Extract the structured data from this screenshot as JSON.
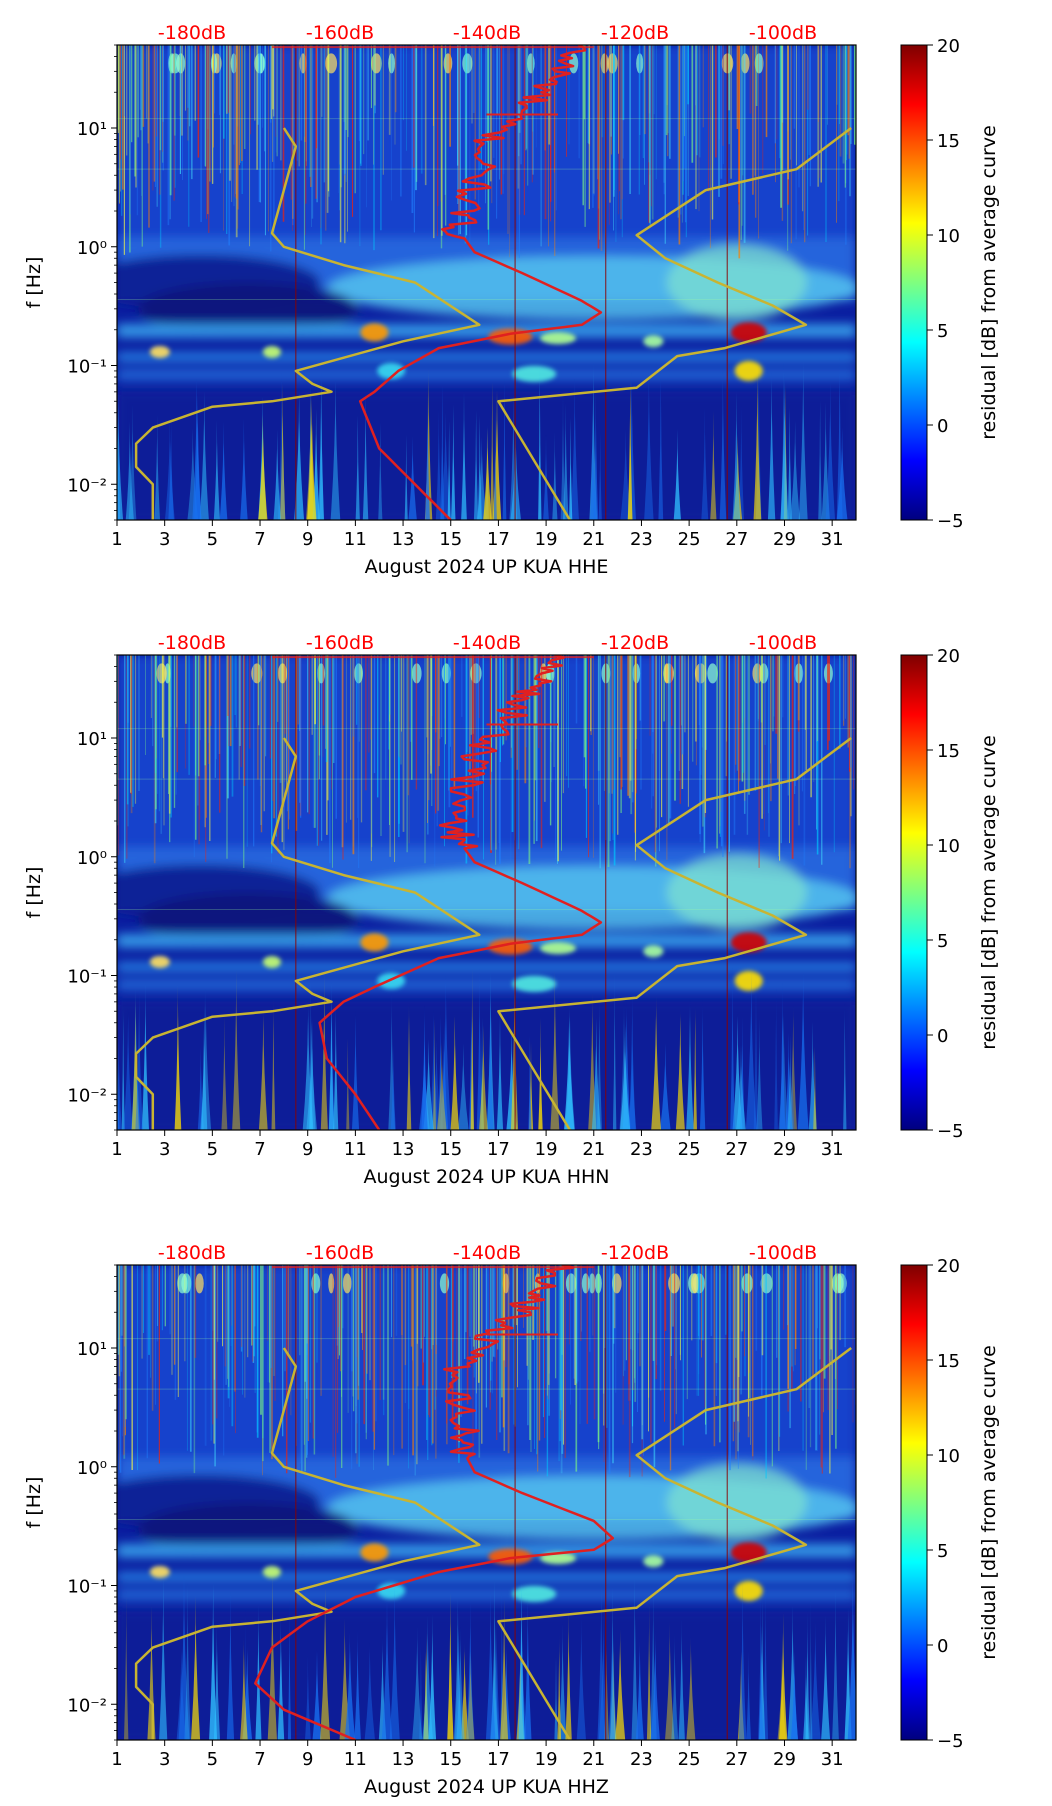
{
  "figure": {
    "title": ""
  },
  "colorbar": {
    "label": "residual [dB] from average curve",
    "ticks": [
      "20",
      "15",
      "10",
      "5",
      "0",
      "−5"
    ],
    "range": [
      -5,
      20
    ],
    "colormap": "jet",
    "stops": [
      "#00007f",
      "#0000ff",
      "#007fff",
      "#00ffff",
      "#7fff7f",
      "#ffff00",
      "#ff7f00",
      "#ff0000",
      "#7f0000"
    ]
  },
  "colors": {
    "psd_curve": "#e02020",
    "noise_model": "#c8b432",
    "db_labels": "#ff0000",
    "axis": "#000000"
  },
  "chart_data": [
    {
      "type": "heatmap",
      "station": "UP KUA",
      "channel": "HHE",
      "xlabel": "August 2024 UP KUA  HHE",
      "ylabel": "f [Hz]",
      "xlim": [
        1,
        32
      ],
      "ylim": [
        0.005,
        50
      ],
      "y_scale": "log",
      "x_ticks": [
        "1",
        "3",
        "5",
        "7",
        "9",
        "11",
        "13",
        "15",
        "17",
        "19",
        "21",
        "23",
        "25",
        "27",
        "29",
        "31"
      ],
      "y_ticks": [
        "10⁻²",
        "10⁻¹",
        "10⁰",
        "10¹"
      ],
      "top_labels": [
        "-180dB",
        "-160dB",
        "-140dB",
        "-120dB",
        "-100dB"
      ],
      "psd_curve_days": {
        "points": [
          [
            20.3,
            50
          ],
          [
            19.6,
            30
          ],
          [
            18.8,
            20
          ],
          [
            17.4,
            12
          ],
          [
            16.4,
            7
          ],
          [
            16.2,
            4
          ],
          [
            15.6,
            2.2
          ],
          [
            15.3,
            1.4
          ],
          [
            16,
            0.9
          ],
          [
            18,
            0.6
          ],
          [
            20.5,
            0.35
          ],
          [
            21.3,
            0.28
          ],
          [
            20.5,
            0.22
          ],
          [
            17.5,
            0.185
          ],
          [
            14.5,
            0.14
          ],
          [
            12.8,
            0.09
          ],
          [
            11.8,
            0.06
          ],
          [
            11.2,
            0.05
          ],
          [
            12,
            0.02
          ],
          [
            13.5,
            0.01
          ],
          [
            15,
            0.005
          ]
        ]
      },
      "noise_model_days": {
        "low": [
          [
            8,
            10
          ],
          [
            8.5,
            7
          ],
          [
            8,
            3
          ],
          [
            7.5,
            1.3
          ],
          [
            8,
            1
          ],
          [
            10.5,
            0.7
          ],
          [
            13.5,
            0.5
          ],
          [
            16.2,
            0.22
          ],
          [
            13,
            0.16
          ],
          [
            8.5,
            0.09
          ],
          [
            9.2,
            0.07
          ],
          [
            10,
            0.06
          ],
          [
            7.5,
            0.05
          ],
          [
            5,
            0.045
          ],
          [
            2.5,
            0.03
          ],
          [
            1.8,
            0.022
          ],
          [
            1.8,
            0.014
          ],
          [
            2.5,
            0.01
          ],
          [
            2.5,
            0.005
          ]
        ],
        "high": [
          [
            31.8,
            10
          ],
          [
            29.5,
            4.5
          ],
          [
            25.7,
            3.0
          ],
          [
            22.8,
            1.25
          ],
          [
            24,
            0.8
          ],
          [
            26.2,
            0.5
          ],
          [
            28.5,
            0.32
          ],
          [
            29.9,
            0.22
          ],
          [
            26.5,
            0.14
          ],
          [
            24.5,
            0.12
          ],
          [
            22.8,
            0.065
          ],
          [
            17,
            0.05
          ],
          [
            20,
            0.005
          ]
        ]
      }
    },
    {
      "type": "heatmap",
      "station": "UP KUA",
      "channel": "HHN",
      "xlabel": "August 2024 UP KUA  HHN",
      "ylabel": "f [Hz]",
      "xlim": [
        1,
        32
      ],
      "ylim": [
        0.005,
        50
      ],
      "y_scale": "log",
      "x_ticks": [
        "1",
        "3",
        "5",
        "7",
        "9",
        "11",
        "13",
        "15",
        "17",
        "19",
        "21",
        "23",
        "25",
        "27",
        "29",
        "31"
      ],
      "y_ticks": [
        "10⁻²",
        "10⁻¹",
        "10⁰",
        "10¹"
      ],
      "top_labels": [
        "-180dB",
        "-160dB",
        "-140dB",
        "-120dB",
        "-100dB"
      ],
      "psd_curve_days": {
        "points": [
          [
            19.3,
            50
          ],
          [
            18.8,
            30
          ],
          [
            17.8,
            20
          ],
          [
            17.2,
            12
          ],
          [
            16,
            7
          ],
          [
            15.6,
            4
          ],
          [
            15.2,
            2.2
          ],
          [
            15.3,
            1.4
          ],
          [
            16,
            0.9
          ],
          [
            18,
            0.6
          ],
          [
            20.5,
            0.35
          ],
          [
            21.3,
            0.28
          ],
          [
            20.5,
            0.22
          ],
          [
            17.5,
            0.185
          ],
          [
            14.5,
            0.14
          ],
          [
            11.8,
            0.08
          ],
          [
            10.5,
            0.06
          ],
          [
            9.5,
            0.04
          ],
          [
            9.8,
            0.02
          ],
          [
            11,
            0.01
          ],
          [
            12,
            0.005
          ]
        ]
      },
      "noise_model_days": {
        "low": [
          [
            8,
            10
          ],
          [
            8.5,
            7
          ],
          [
            8,
            3
          ],
          [
            7.5,
            1.3
          ],
          [
            8,
            1
          ],
          [
            10.5,
            0.7
          ],
          [
            13.5,
            0.5
          ],
          [
            16.2,
            0.22
          ],
          [
            13,
            0.16
          ],
          [
            8.5,
            0.09
          ],
          [
            9.2,
            0.07
          ],
          [
            10,
            0.06
          ],
          [
            7.5,
            0.05
          ],
          [
            5,
            0.045
          ],
          [
            2.5,
            0.03
          ],
          [
            1.8,
            0.022
          ],
          [
            1.8,
            0.014
          ],
          [
            2.5,
            0.01
          ],
          [
            2.5,
            0.005
          ]
        ],
        "high": [
          [
            31.8,
            10
          ],
          [
            29.5,
            4.5
          ],
          [
            25.7,
            3.0
          ],
          [
            22.8,
            1.25
          ],
          [
            24,
            0.8
          ],
          [
            26.2,
            0.5
          ],
          [
            28.5,
            0.32
          ],
          [
            29.9,
            0.22
          ],
          [
            26.5,
            0.14
          ],
          [
            24.5,
            0.12
          ],
          [
            22.8,
            0.065
          ],
          [
            17,
            0.05
          ],
          [
            20,
            0.005
          ]
        ]
      }
    },
    {
      "type": "heatmap",
      "station": "UP KUA",
      "channel": "HHZ",
      "xlabel": "August 2024 UP KUA  HHZ",
      "ylabel": "f [Hz]",
      "xlim": [
        1,
        32
      ],
      "ylim": [
        0.005,
        50
      ],
      "y_scale": "log",
      "x_ticks": [
        "1",
        "3",
        "5",
        "7",
        "9",
        "11",
        "13",
        "15",
        "17",
        "19",
        "21",
        "23",
        "25",
        "27",
        "29",
        "31"
      ],
      "y_ticks": [
        "10⁻²",
        "10⁻¹",
        "10⁰",
        "10¹"
      ],
      "top_labels": [
        "-180dB",
        "-160dB",
        "-140dB",
        "-120dB",
        "-100dB"
      ],
      "psd_curve_days": {
        "points": [
          [
            19.6,
            50
          ],
          [
            18.8,
            30
          ],
          [
            17.8,
            20
          ],
          [
            16.6,
            12
          ],
          [
            15.3,
            7
          ],
          [
            15.1,
            4
          ],
          [
            15.8,
            2.2
          ],
          [
            15.5,
            1.4
          ],
          [
            16,
            0.9
          ],
          [
            18,
            0.6
          ],
          [
            21,
            0.35
          ],
          [
            21.8,
            0.25
          ],
          [
            21,
            0.2
          ],
          [
            17.5,
            0.17
          ],
          [
            14.5,
            0.13
          ],
          [
            11,
            0.08
          ],
          [
            9,
            0.05
          ],
          [
            7.5,
            0.03
          ],
          [
            6.8,
            0.015
          ],
          [
            8,
            0.009
          ],
          [
            11,
            0.005
          ]
        ]
      },
      "noise_model_days": {
        "low": [
          [
            8,
            10
          ],
          [
            8.5,
            7
          ],
          [
            8,
            3
          ],
          [
            7.5,
            1.3
          ],
          [
            8,
            1
          ],
          [
            10.5,
            0.7
          ],
          [
            13.5,
            0.5
          ],
          [
            16.2,
            0.22
          ],
          [
            13,
            0.16
          ],
          [
            8.5,
            0.09
          ],
          [
            9.2,
            0.07
          ],
          [
            10,
            0.06
          ],
          [
            7.5,
            0.05
          ],
          [
            5,
            0.045
          ],
          [
            2.5,
            0.03
          ],
          [
            1.8,
            0.022
          ],
          [
            1.8,
            0.014
          ],
          [
            2.5,
            0.01
          ],
          [
            2.5,
            0.005
          ]
        ],
        "high": [
          [
            31.8,
            10
          ],
          [
            29.5,
            4.5
          ],
          [
            25.7,
            3.0
          ],
          [
            22.8,
            1.25
          ],
          [
            24,
            0.8
          ],
          [
            26.2,
            0.5
          ],
          [
            28.5,
            0.32
          ],
          [
            29.9,
            0.22
          ],
          [
            26.5,
            0.14
          ],
          [
            24.5,
            0.12
          ],
          [
            22.8,
            0.065
          ],
          [
            17,
            0.05
          ],
          [
            20,
            0.005
          ]
        ]
      }
    }
  ]
}
